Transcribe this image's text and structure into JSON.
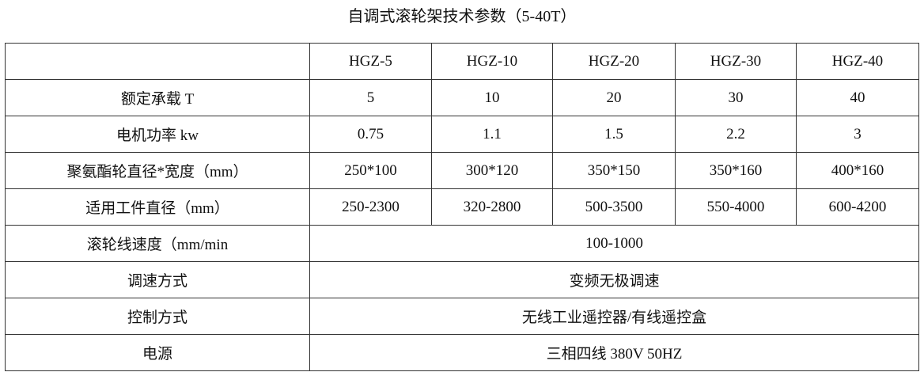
{
  "title": "自调式滚轮架技术参数（5-40T）",
  "header": [
    "",
    "HGZ-5",
    "HGZ-10",
    "HGZ-20",
    "HGZ-30",
    "HGZ-40"
  ],
  "rows": [
    {
      "label": "额定承载 T",
      "values": [
        "5",
        "10",
        "20",
        "30",
        "40"
      ]
    },
    {
      "label": "电机功率 kw",
      "values": [
        "0.75",
        "1.1",
        "1.5",
        "2.2",
        "3"
      ]
    },
    {
      "label": "聚氨酯轮直径*宽度（mm）",
      "values": [
        "250*100",
        "300*120",
        "350*150",
        "350*160",
        "400*160"
      ]
    },
    {
      "label": "适用工件直径（mm）",
      "values": [
        "250-2300",
        "320-2800",
        "500-3500",
        "550-4000",
        "600-4200"
      ]
    }
  ],
  "merged_rows": [
    {
      "label": "滚轮线速度（mm/min",
      "value": "100-1000"
    },
    {
      "label": "调速方式",
      "value": "变频无极调速"
    },
    {
      "label": "控制方式",
      "value": "无线工业遥控器/有线遥控盒"
    },
    {
      "label": "电源",
      "value": "三相四线 380V 50HZ"
    }
  ]
}
